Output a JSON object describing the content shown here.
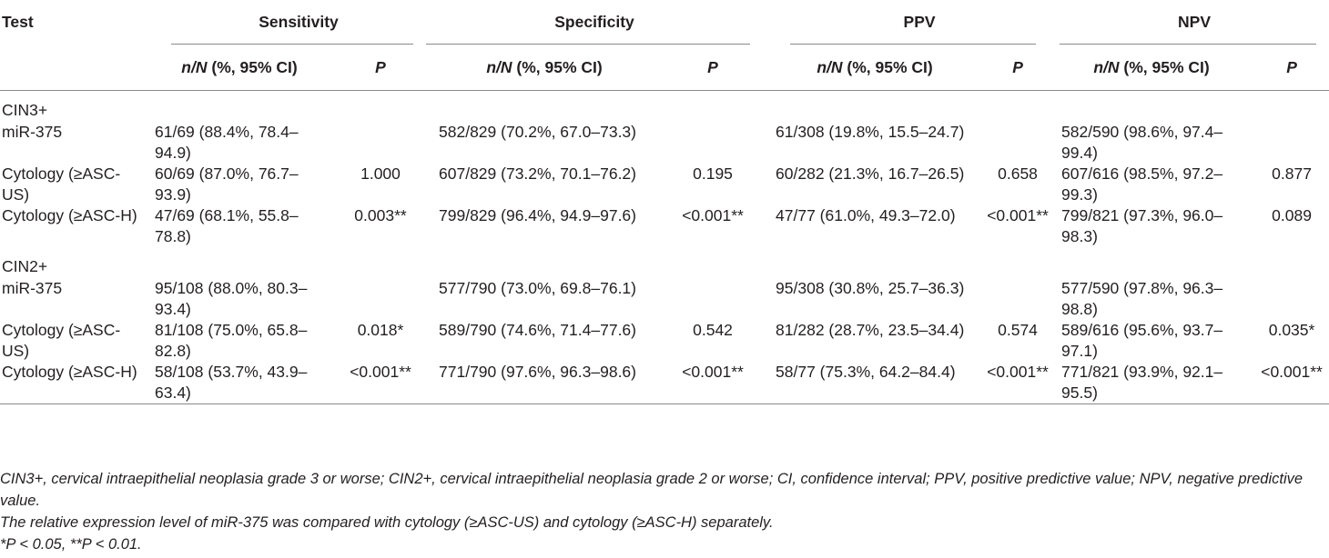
{
  "headers": {
    "test": "Test",
    "groups": [
      "Sensitivity",
      "Specificity",
      "PPV",
      "NPV"
    ],
    "sub_n": "n/N",
    "sub_rest": " (%, 95% CI)",
    "sub_p": "P"
  },
  "groups": [
    {
      "label": "CIN3+",
      "rows": [
        {
          "test": "miR-375",
          "cells": [
            {
              "v": "61/69 (88.4%, 78.4–94.9)",
              "p": ""
            },
            {
              "v": "582/829 (70.2%, 67.0–73.3)",
              "p": ""
            },
            {
              "v": "61/308 (19.8%, 15.5–24.7)",
              "p": ""
            },
            {
              "v": "582/590 (98.6%, 97.4–99.4)",
              "p": ""
            }
          ]
        },
        {
          "test": "Cytology (≥ASC-US)",
          "cells": [
            {
              "v": "60/69 (87.0%, 76.7–93.9)",
              "p": "1.000"
            },
            {
              "v": "607/829 (73.2%, 70.1–76.2)",
              "p": "0.195"
            },
            {
              "v": "60/282 (21.3%, 16.7–26.5)",
              "p": "0.658"
            },
            {
              "v": "607/616 (98.5%, 97.2–99.3)",
              "p": "0.877"
            }
          ]
        },
        {
          "test": "Cytology (≥ASC-H)",
          "cells": [
            {
              "v": "47/69 (68.1%, 55.8–78.8)",
              "p": "0.003**"
            },
            {
              "v": "799/829 (96.4%, 94.9–97.6)",
              "p": "<0.001**"
            },
            {
              "v": "47/77 (61.0%, 49.3–72.0)",
              "p": "<0.001**"
            },
            {
              "v": "799/821 (97.3%, 96.0–98.3)",
              "p": "0.089"
            }
          ]
        }
      ]
    },
    {
      "label": "CIN2+",
      "rows": [
        {
          "test": "miR-375",
          "cells": [
            {
              "v": "95/108 (88.0%, 80.3–93.4)",
              "p": ""
            },
            {
              "v": "577/790 (73.0%, 69.8–76.1)",
              "p": ""
            },
            {
              "v": "95/308 (30.8%, 25.7–36.3)",
              "p": ""
            },
            {
              "v": "577/590 (97.8%, 96.3–98.8)",
              "p": ""
            }
          ]
        },
        {
          "test": "Cytology (≥ASC-US)",
          "cells": [
            {
              "v": "81/108 (75.0%, 65.8–82.8)",
              "p": "0.018*"
            },
            {
              "v": "589/790 (74.6%, 71.4–77.6)",
              "p": "0.542"
            },
            {
              "v": "81/282 (28.7%, 23.5–34.4)",
              "p": "0.574"
            },
            {
              "v": "589/616 (95.6%, 93.7–97.1)",
              "p": "0.035*"
            }
          ]
        },
        {
          "test": "Cytology (≥ASC-H)",
          "cells": [
            {
              "v": "58/108 (53.7%, 43.9–63.4)",
              "p": "<0.001**"
            },
            {
              "v": "771/790 (97.6%, 96.3–98.6)",
              "p": "<0.001**"
            },
            {
              "v": "58/77 (75.3%, 64.2–84.4)",
              "p": "<0.001**"
            },
            {
              "v": "771/821 (93.9%, 92.1–95.5)",
              "p": "<0.001**"
            }
          ]
        }
      ]
    }
  ],
  "footnotes": [
    "CIN3+, cervical intraepithelial neoplasia grade 3 or worse; CIN2+, cervical intraepithelial neoplasia grade 2 or worse; CI, confidence interval; PPV, positive predictive value; NPV, negative predictive value.",
    "The relative expression level of miR-375 was compared with cytology (≥ASC-US) and cytology (≥ASC-H) separately.",
    "*P < 0.05, **P < 0.01."
  ]
}
